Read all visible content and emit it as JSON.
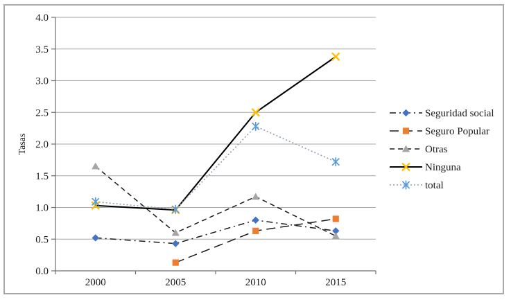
{
  "figure": {
    "background_color": "#ffffff",
    "border_color": "#a9a9a9"
  },
  "chart_data": {
    "type": "line",
    "ylabel": "Tasas",
    "categories": [
      "2000",
      "2005",
      "2010",
      "2015"
    ],
    "ylim": [
      0.0,
      4.0
    ],
    "ytick_step": 0.5,
    "ytick_labels": [
      "0.0",
      "0.5",
      "1.0",
      "1.5",
      "2.0",
      "2.5",
      "3.0",
      "3.5",
      "4.0"
    ],
    "grid": true,
    "grid_color": "#a6a6a6",
    "axis_color": "#6e6e6e",
    "legend_position": "right",
    "series": [
      {
        "name": "Seguridad social",
        "values": [
          0.52,
          0.43,
          0.8,
          0.63
        ],
        "marker": "diamond",
        "marker_color": "#4472C4",
        "line_style": "dashdot",
        "line_color": "#1a1a1a"
      },
      {
        "name": "Seguro Popular",
        "values": [
          null,
          0.13,
          0.63,
          0.82
        ],
        "marker": "square",
        "marker_color": "#ED7D31",
        "line_style": "longdash",
        "line_color": "#1a1a1a"
      },
      {
        "name": "Otras",
        "values": [
          1.65,
          0.6,
          1.17,
          0.55
        ],
        "marker": "triangle",
        "marker_color": "#A5A5A5",
        "line_style": "dash",
        "line_color": "#1a1a1a"
      },
      {
        "name": "Ninguna",
        "values": [
          1.03,
          0.96,
          2.5,
          3.38
        ],
        "marker": "x",
        "marker_color": "#FFC000",
        "line_style": "solid",
        "line_color": "#000000"
      },
      {
        "name": "total",
        "values": [
          1.09,
          0.97,
          2.28,
          1.72
        ],
        "marker": "asterisk",
        "marker_color": "#5B9BD5",
        "line_style": "dotted",
        "line_color": "#8da0b3"
      }
    ]
  }
}
